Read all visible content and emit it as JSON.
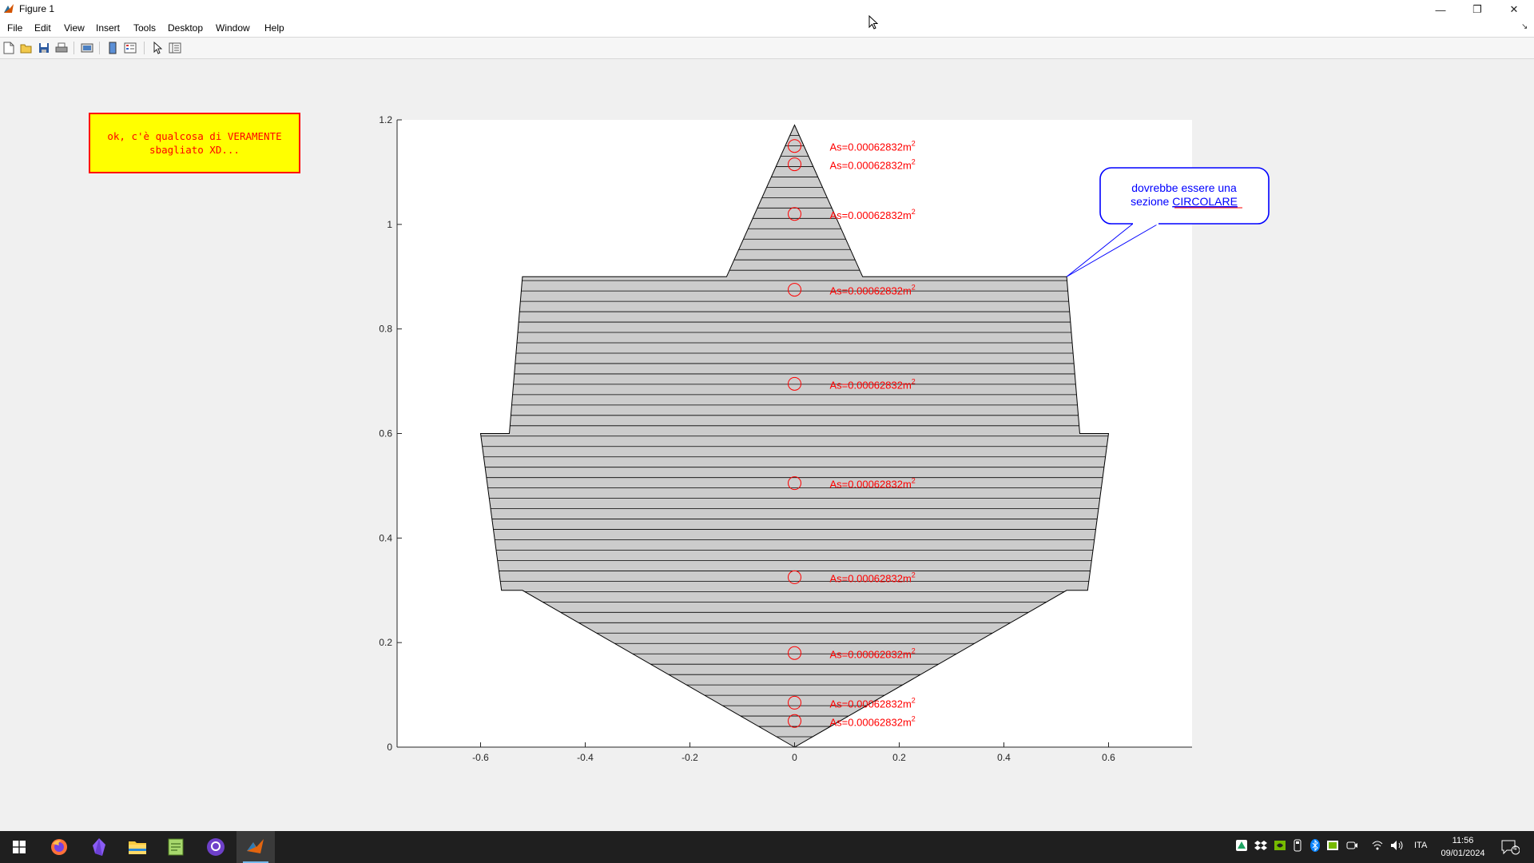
{
  "window": {
    "title": "Figure 1"
  },
  "menu": [
    "File",
    "Edit",
    "View",
    "Insert",
    "Tools",
    "Desktop",
    "Window",
    "Help"
  ],
  "toolbar": {
    "icons": [
      "new-figure-icon",
      "open-file-icon",
      "save-icon",
      "print-icon",
      "print-preview-icon",
      "colorbar-icon",
      "legend-icon",
      "pointer-icon",
      "property-editor-icon"
    ]
  },
  "annotations": {
    "yellow_box": "ok, c'è qualcosa di VERAMENTE\nsbagliato XD...",
    "callout_line1": "dovrebbe essere una",
    "callout_prefix": "sezione ",
    "callout_emphasis": "CIRCOLARE"
  },
  "chart_data": {
    "type": "scatter",
    "title": "",
    "xlabel": "",
    "ylabel": "",
    "xlim": [
      -0.76,
      0.76
    ],
    "ylim": [
      0,
      1.2
    ],
    "xticks": [
      -0.6,
      -0.4,
      -0.2,
      0,
      0.2,
      0.4,
      0.6
    ],
    "yticks": [
      0,
      0.2,
      0.4,
      0.6,
      0.8,
      1,
      1.2
    ],
    "grid": false,
    "section_outline": [
      [
        0,
        0
      ],
      [
        -0.52,
        0.3
      ],
      [
        -0.56,
        0.3
      ],
      [
        -0.6,
        0.6
      ],
      [
        -0.545,
        0.6
      ],
      [
        -0.52,
        0.9
      ],
      [
        -0.13,
        0.9
      ],
      [
        0,
        1.19
      ],
      [
        0.13,
        0.9
      ],
      [
        0.52,
        0.9
      ],
      [
        0.545,
        0.6
      ],
      [
        0.6,
        0.6
      ],
      [
        0.56,
        0.3
      ],
      [
        0.52,
        0.3
      ],
      [
        0,
        0
      ]
    ],
    "fill_color": "#cccccc",
    "strip_count": 60,
    "rebar_label_prefix": "As=0.00062832m",
    "rebar_label_superscript": "2",
    "rebar_color": "#ff0000",
    "rebars": [
      {
        "x": 0,
        "y": 0.05
      },
      {
        "x": 0,
        "y": 0.085
      },
      {
        "x": 0,
        "y": 0.18
      },
      {
        "x": 0,
        "y": 0.325
      },
      {
        "x": 0,
        "y": 0.505
      },
      {
        "x": 0,
        "y": 0.695
      },
      {
        "x": 0,
        "y": 0.875
      },
      {
        "x": 0,
        "y": 1.02
      },
      {
        "x": 0,
        "y": 1.115
      },
      {
        "x": 0,
        "y": 1.15
      }
    ],
    "callout_anchor": [
      0.52,
      0.9
    ],
    "callout_color": "#0000ff"
  },
  "taskbar": {
    "apps": [
      "windows-start-icon",
      "firefox-icon",
      "obsidian-icon",
      "file-explorer-icon",
      "notepad-plus-icon",
      "github-desktop-icon",
      "matlab-icon"
    ],
    "language": "ITA",
    "time": "11:56",
    "date": "09/01/2024",
    "notifications": "4"
  }
}
